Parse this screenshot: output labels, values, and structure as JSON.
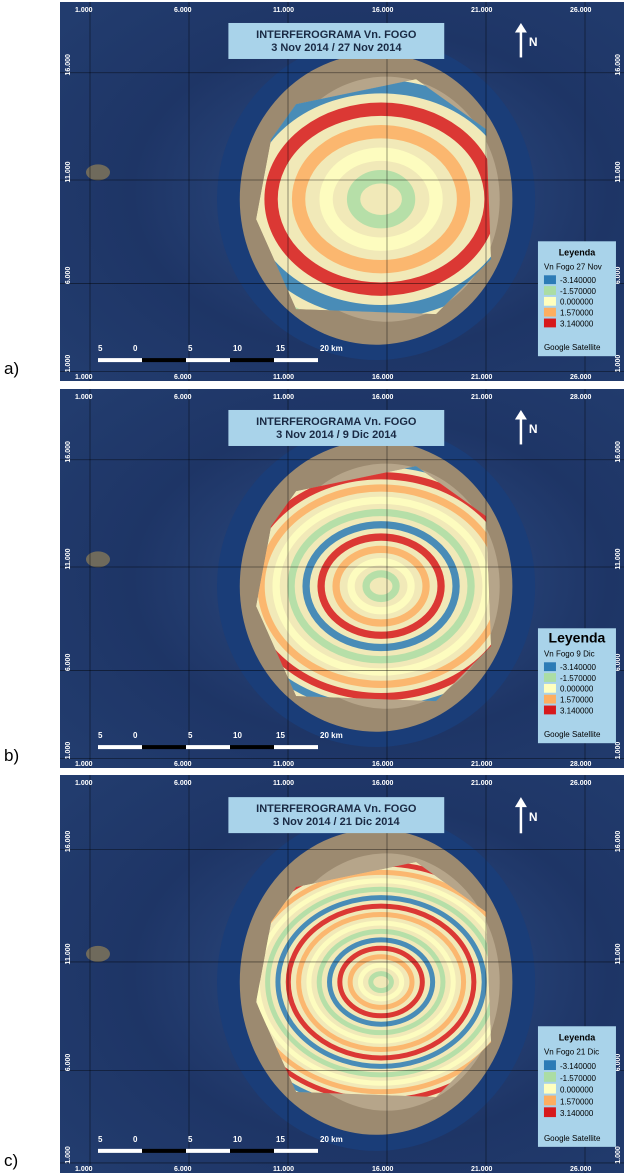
{
  "panels": [
    {
      "label": "a)",
      "title": [
        "INTERFEROGRAMA Vn. FOGO",
        "3 Nov 2014 / 27 Nov 2014"
      ],
      "top_ticks": [
        "1.000",
        "6.000",
        "11.000",
        "16.000",
        "21.000",
        "26.000"
      ],
      "bottom_ticks": [
        "1.000",
        "6.000",
        "11.000",
        "16.000",
        "21.000",
        "26.000"
      ],
      "left_ticks": [
        "16.000",
        "11.000",
        "6.000",
        "1.000"
      ],
      "right_ticks": [
        "16.000",
        "11.000",
        "6.000",
        "1.000"
      ],
      "north": "N",
      "scale": [
        "5",
        "0",
        "5",
        "10",
        "15",
        "20 km"
      ],
      "legend": {
        "title": "Leyenda",
        "layer": "Vn Fogo 27 Nov",
        "items": [
          {
            "label": "-3.140000",
            "color": "#2c7bb6"
          },
          {
            "label": "-1.570000",
            "color": "#abdda4"
          },
          {
            "label": "0.000000",
            "color": "#ffffbf"
          },
          {
            "label": "1.570000",
            "color": "#fdae61"
          },
          {
            "label": "3.140000",
            "color": "#d7191c"
          }
        ],
        "source": "Google Satellite"
      }
    },
    {
      "label": "b)",
      "title": [
        "INTERFEROGRAMA Vn. FOGO",
        "3 Nov 2014 / 9 Dic 2014"
      ],
      "top_ticks": [
        "1.000",
        "6.000",
        "11.000",
        "16.000",
        "21.000",
        "28.000"
      ],
      "bottom_ticks": [
        "1.000",
        "6.000",
        "11.000",
        "16.000",
        "21.000",
        "28.000"
      ],
      "left_ticks": [
        "16.000",
        "11.000",
        "6.000",
        "1.000"
      ],
      "right_ticks": [
        "16.000",
        "11.000",
        "6.000",
        "1.000"
      ],
      "north": "N",
      "scale": [
        "5",
        "0",
        "5",
        "10",
        "15",
        "20 km"
      ],
      "legend": {
        "title": "Leyenda",
        "layer": "Vn Fogo 9 Dic",
        "items": [
          {
            "label": "-3.140000",
            "color": "#2c7bb6"
          },
          {
            "label": "-1.570000",
            "color": "#abdda4"
          },
          {
            "label": "0.000000",
            "color": "#ffffbf"
          },
          {
            "label": "1.570000",
            "color": "#fdae61"
          },
          {
            "label": "3.140000",
            "color": "#d7191c"
          }
        ],
        "source": "Google Satellite"
      }
    },
    {
      "label": "c)",
      "title": [
        "INTERFEROGRAMA Vn. FOGO",
        "3 Nov 2014 / 21 Dic 2014"
      ],
      "top_ticks": [
        "1.000",
        "6.000",
        "11.000",
        "16.000",
        "21.000",
        "26.000"
      ],
      "bottom_ticks": [
        "1.000",
        "6.000",
        "11.000",
        "16.000",
        "21.000",
        "26.000"
      ],
      "left_ticks": [
        "16.000",
        "11.000",
        "6.000",
        "1.000"
      ],
      "right_ticks": [
        "16.000",
        "11.000",
        "6.000",
        "1.000"
      ],
      "north": "N",
      "scale": [
        "5",
        "0",
        "5",
        "10",
        "15",
        "20 km"
      ],
      "legend": {
        "title": "Leyenda",
        "layer": "Vn Fogo 21 Dic",
        "items": [
          {
            "label": "-3.140000",
            "color": "#2c7bb6"
          },
          {
            "label": "-1.570000",
            "color": "#abdda4"
          },
          {
            "label": "0.000000",
            "color": "#ffffbf"
          },
          {
            "label": "1.570000",
            "color": "#fdae61"
          },
          {
            "label": "3.140000",
            "color": "#d7191c"
          }
        ],
        "source": "Google Satellite"
      }
    }
  ]
}
